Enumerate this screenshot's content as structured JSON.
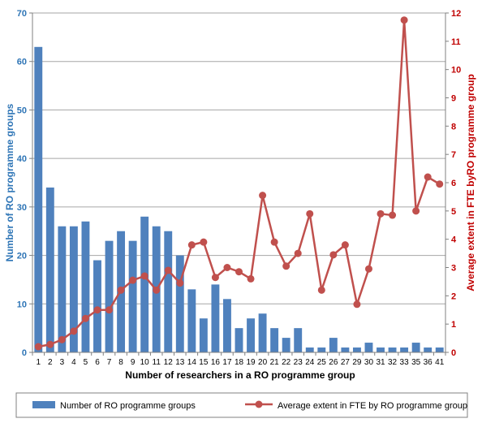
{
  "chart_data": {
    "type": "bar+line",
    "title": "",
    "xlabel": "Number of researchers in a RO programme group",
    "ylabel_left": "Number of RO programme groups",
    "ylabel_right": "Average extent in FTE byRO programme group",
    "ylim_left": [
      0,
      70
    ],
    "yticks_left": [
      0,
      10,
      20,
      30,
      40,
      50,
      60,
      70
    ],
    "ylim_right": [
      0,
      12
    ],
    "yticks_right": [
      0,
      1,
      2,
      3,
      4,
      5,
      6,
      7,
      8,
      9,
      10,
      11,
      12
    ],
    "grid": true,
    "legend_position": "bottom",
    "categories": [
      "1",
      "2",
      "3",
      "4",
      "5",
      "6",
      "7",
      "8",
      "9",
      "10",
      "11",
      "12",
      "13",
      "14",
      "15",
      "16",
      "17",
      "18",
      "19",
      "20",
      "21",
      "22",
      "23",
      "24",
      "25",
      "26",
      "27",
      "29",
      "30",
      "31",
      "32",
      "33",
      "35",
      "36",
      "41"
    ],
    "series": [
      {
        "name": "Number of RO programme groups",
        "type": "bar",
        "axis": "left",
        "color": "#4f81bd",
        "values": [
          63,
          34,
          26,
          26,
          27,
          19,
          23,
          25,
          23,
          28,
          26,
          25,
          20,
          13,
          7,
          14,
          11,
          5,
          7,
          8,
          5,
          3,
          5,
          1,
          1,
          3,
          1,
          1,
          2,
          1,
          1,
          1,
          2,
          1,
          1
        ]
      },
      {
        "name": "Average extent in FTE by RO programme group",
        "type": "line",
        "axis": "right",
        "color": "#c0504d",
        "values": [
          0.2,
          0.28,
          0.45,
          0.75,
          1.2,
          1.5,
          1.5,
          2.2,
          2.55,
          2.7,
          2.2,
          2.9,
          2.45,
          3.8,
          3.9,
          2.65,
          3.0,
          2.85,
          2.6,
          5.55,
          3.9,
          3.05,
          3.5,
          4.9,
          2.2,
          3.45,
          3.8,
          1.7,
          2.95,
          4.9,
          4.85,
          11.75,
          5.0,
          6.2,
          5.95
        ]
      }
    ]
  }
}
